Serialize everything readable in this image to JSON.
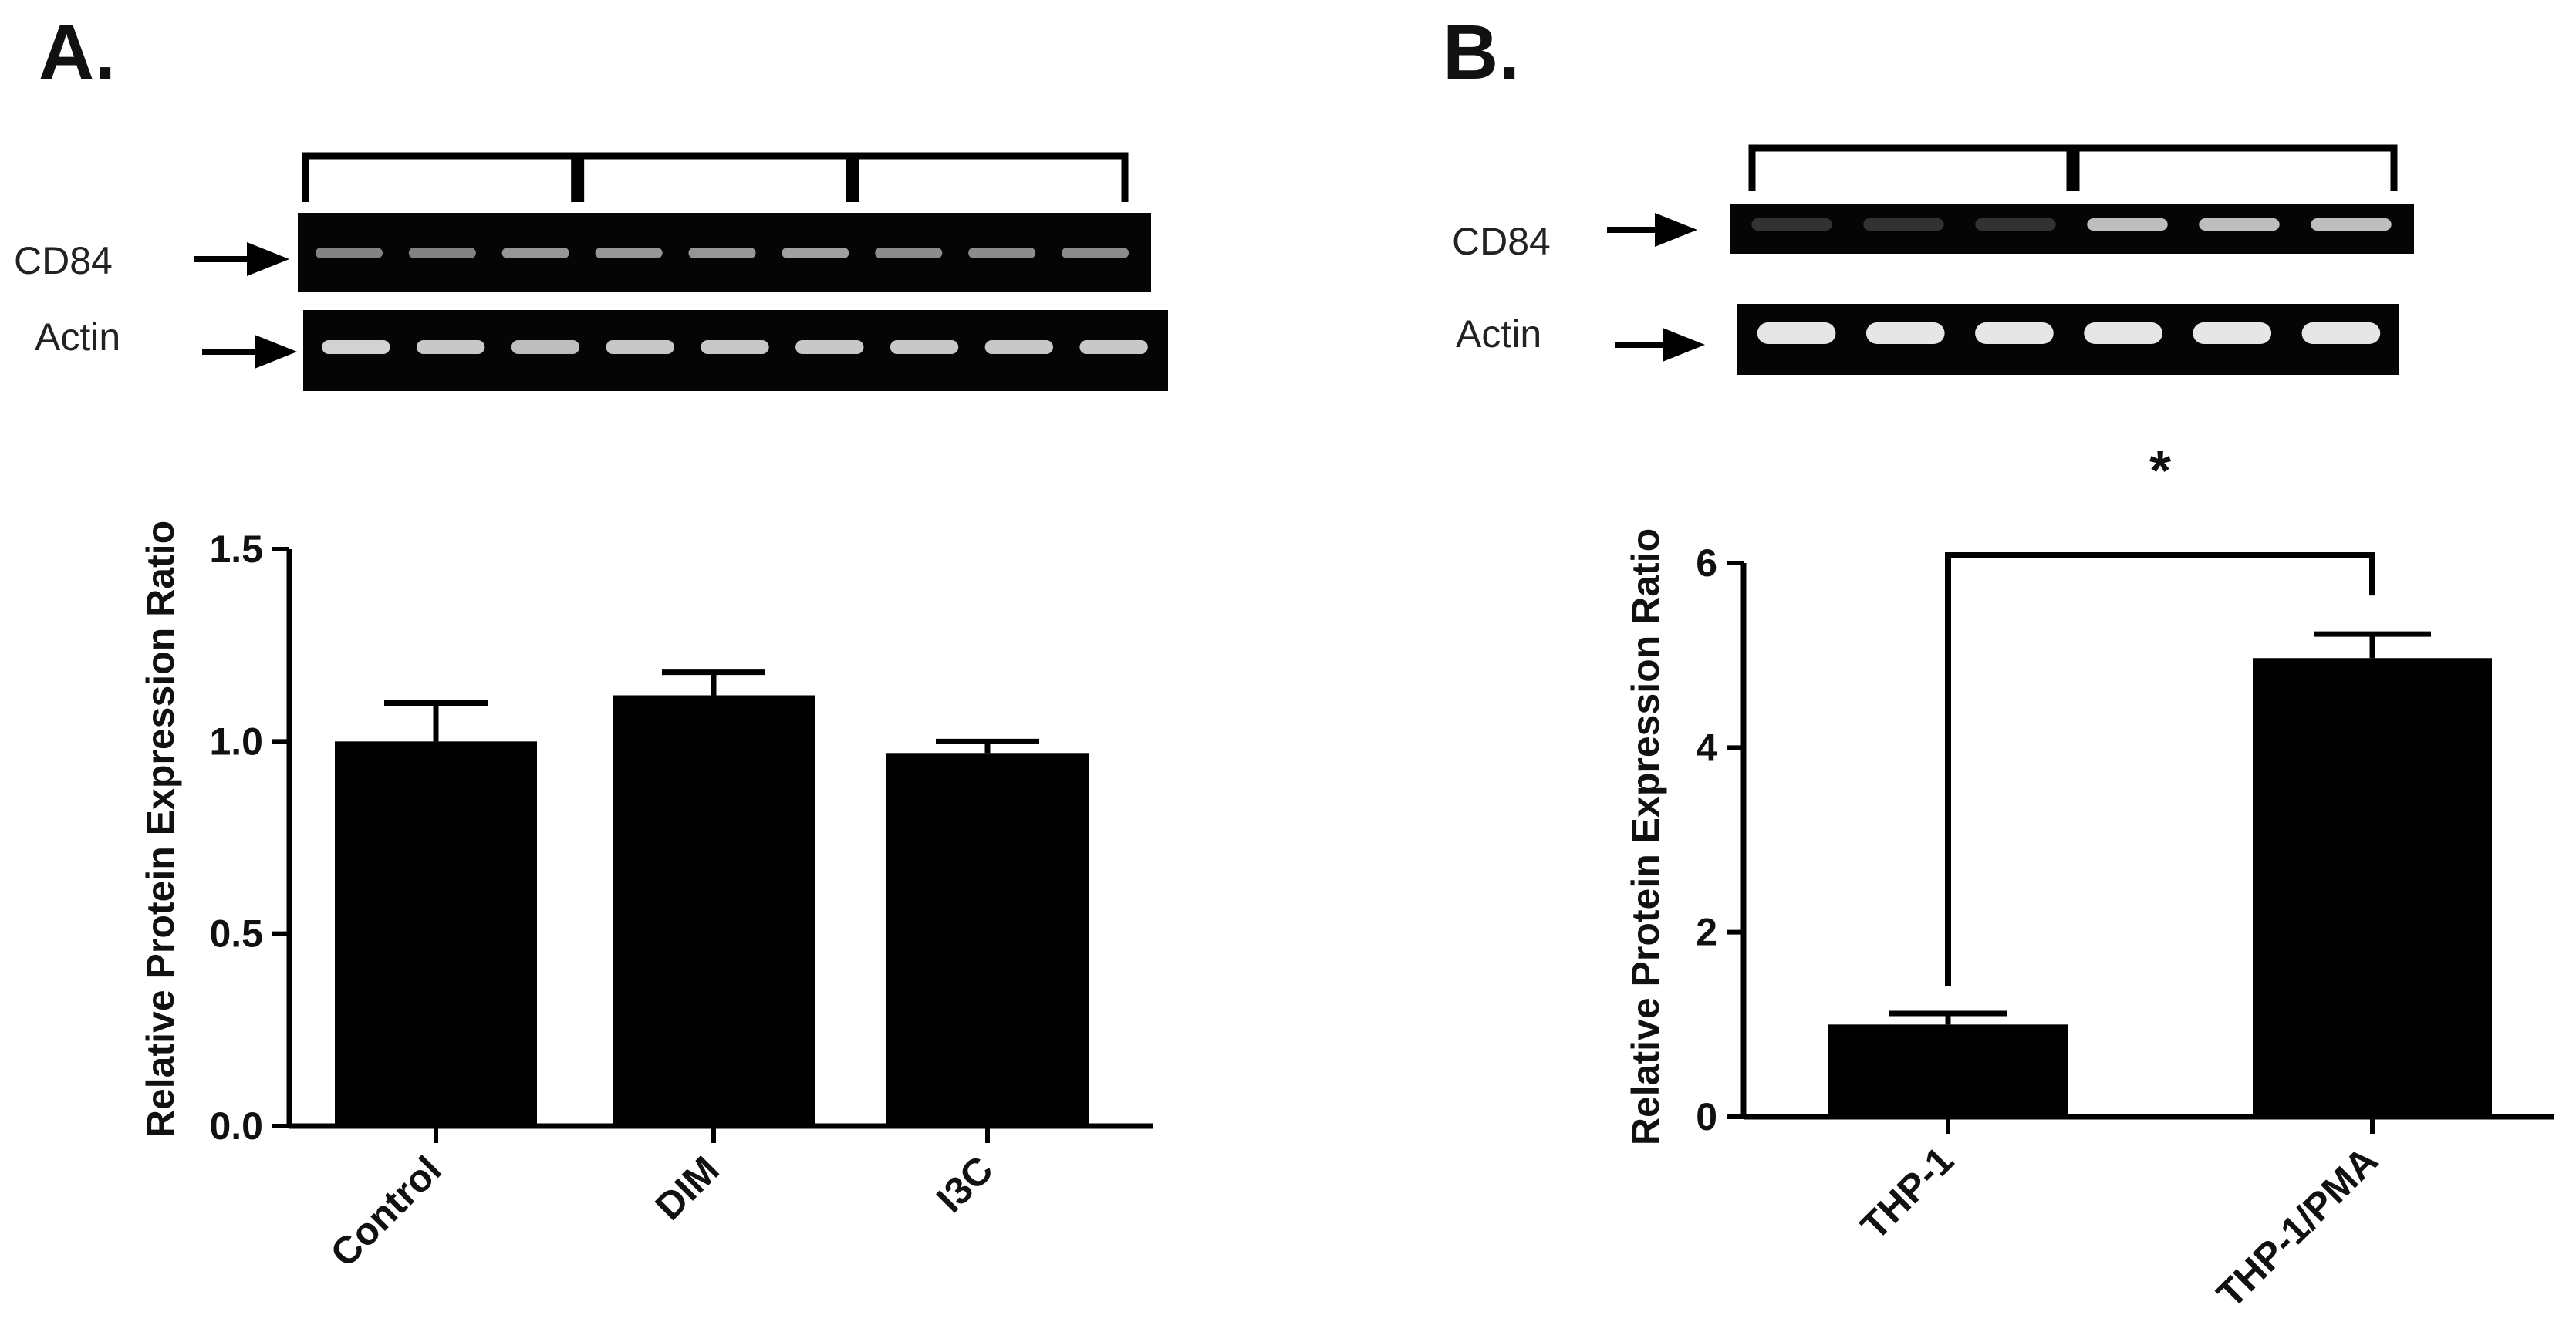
{
  "panels": [
    {
      "letter": "A.",
      "blot_labels": {
        "top": "CD84",
        "bottom": "Actin"
      },
      "lanes": 9,
      "groups": 3,
      "cd84_intensity": [
        0.45,
        0.45,
        0.55,
        0.55,
        0.55,
        0.6,
        0.5,
        0.5,
        0.5
      ],
      "actin_intensity": [
        0.85,
        0.8,
        0.75,
        0.8,
        0.8,
        0.8,
        0.8,
        0.8,
        0.8
      ]
    },
    {
      "letter": "B.",
      "blot_labels": {
        "top": "CD84",
        "bottom": "Actin"
      },
      "lanes": 6,
      "groups": 2,
      "cd84_intensity": [
        0.05,
        0.05,
        0.05,
        0.75,
        0.75,
        0.75
      ],
      "actin_intensity": [
        0.95,
        0.95,
        0.95,
        0.95,
        0.95,
        0.95
      ]
    }
  ],
  "chart_data": [
    {
      "type": "bar",
      "categories": [
        "Control",
        "DIM",
        "I3C"
      ],
      "values": [
        1.0,
        1.12,
        0.97
      ],
      "errors": [
        0.1,
        0.06,
        0.03
      ],
      "xlabel": "",
      "ylabel": "Relative Protein Expression Ratio",
      "ylim": [
        0,
        1.5
      ],
      "yticks": [
        0.0,
        0.5,
        1.0,
        1.5
      ],
      "ytick_labels": [
        "0.0",
        "0.5",
        "1.0",
        "1.5"
      ],
      "bar_color": "#000000",
      "grid": false
    },
    {
      "type": "bar",
      "categories": [
        "THP-1",
        "THP-1/PMA"
      ],
      "values": [
        1.0,
        4.97
      ],
      "errors": [
        0.12,
        0.26
      ],
      "xlabel": "",
      "ylabel": "Relative Protein Expression Ratio",
      "ylim": [
        0,
        6
      ],
      "yticks": [
        0,
        2,
        4,
        6
      ],
      "ytick_labels": [
        "0",
        "2",
        "4",
        "6"
      ],
      "bar_color": "#000000",
      "grid": false,
      "significance": {
        "from": 0,
        "to": 1,
        "label": "*"
      }
    }
  ]
}
